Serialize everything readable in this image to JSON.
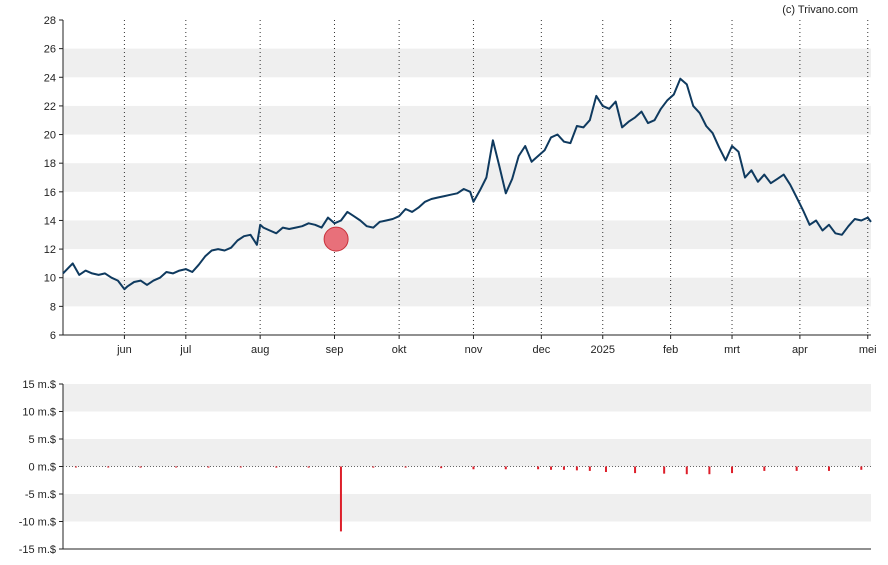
{
  "credit": "(c) Trivano.com",
  "colors": {
    "price_line": "#0f3a5f",
    "band": "#efefef",
    "axis": "#222222",
    "gridline": "#333333",
    "volume": "#dd1f2a",
    "marker": "#e8707a",
    "marker_stroke": "#c8303a"
  },
  "chart_data": [
    {
      "type": "line",
      "name": "price",
      "grid": true,
      "ylim": [
        6,
        28
      ],
      "yticks": [
        6,
        8,
        10,
        12,
        14,
        16,
        18,
        20,
        22,
        24,
        26,
        28
      ],
      "ytick_labels": [
        "6",
        "8",
        "10",
        "12",
        "14",
        "16",
        "18",
        "20",
        "22",
        "24",
        "26",
        "28"
      ],
      "xlim": [
        0,
        250
      ],
      "xticks": [
        {
          "label": "jun",
          "x": 19
        },
        {
          "label": "jul",
          "x": 38
        },
        {
          "label": "aug",
          "x": 61
        },
        {
          "label": "sep",
          "x": 84
        },
        {
          "label": "okt",
          "x": 104
        },
        {
          "label": "nov",
          "x": 127
        },
        {
          "label": "dec",
          "x": 148
        },
        {
          "label": "2025",
          "x": 167
        },
        {
          "label": "feb",
          "x": 188
        },
        {
          "label": "mrt",
          "x": 207
        },
        {
          "label": "apr",
          "x": 228
        },
        {
          "label": "mei",
          "x": 249
        }
      ],
      "x": [
        0,
        3,
        5,
        7,
        9,
        11,
        13,
        15,
        17,
        19,
        20,
        22,
        24,
        26,
        28,
        30,
        32,
        34,
        36,
        38,
        40,
        42,
        44,
        46,
        48,
        50,
        52,
        54,
        56,
        58,
        60,
        61,
        62,
        64,
        66,
        68,
        70,
        72,
        74,
        76,
        78,
        80,
        82,
        84,
        86,
        88,
        90,
        92,
        94,
        96,
        98,
        100,
        102,
        104,
        106,
        108,
        110,
        112,
        114,
        116,
        118,
        120,
        122,
        124,
        126,
        127,
        129,
        131,
        133,
        135,
        137,
        139,
        141,
        143,
        145,
        147,
        149,
        151,
        153,
        155,
        157,
        159,
        161,
        163,
        165,
        167,
        169,
        171,
        173,
        175,
        177,
        179,
        181,
        183,
        185,
        187,
        189,
        191,
        193,
        195,
        197,
        199,
        201,
        203,
        205,
        207,
        209,
        211,
        213,
        215,
        217,
        219,
        221,
        223,
        225,
        227,
        229,
        231,
        233,
        235,
        237,
        239,
        241,
        243,
        245,
        247,
        249,
        250
      ],
      "y": [
        10.3,
        11.0,
        10.2,
        10.5,
        10.3,
        10.2,
        10.3,
        10.0,
        9.8,
        9.2,
        9.4,
        9.7,
        9.8,
        9.5,
        9.8,
        10.0,
        10.4,
        10.3,
        10.5,
        10.6,
        10.4,
        10.9,
        11.5,
        11.9,
        12.0,
        11.9,
        12.1,
        12.6,
        12.9,
        13.0,
        12.3,
        13.7,
        13.5,
        13.3,
        13.1,
        13.5,
        13.4,
        13.5,
        13.6,
        13.8,
        13.7,
        13.5,
        14.2,
        13.8,
        14.0,
        14.6,
        14.3,
        14.0,
        13.6,
        13.5,
        13.9,
        14.0,
        14.1,
        14.3,
        14.8,
        14.6,
        14.9,
        15.3,
        15.5,
        15.6,
        15.7,
        15.8,
        15.9,
        16.2,
        16.0,
        15.3,
        16.1,
        17.0,
        19.6,
        17.8,
        15.9,
        16.9,
        18.5,
        19.2,
        18.1,
        18.5,
        18.9,
        19.8,
        20.0,
        19.5,
        19.4,
        20.6,
        20.5,
        21.0,
        22.7,
        22.0,
        21.8,
        22.3,
        20.5,
        20.9,
        21.2,
        21.6,
        20.8,
        21.0,
        21.8,
        22.4,
        22.8,
        23.9,
        23.5,
        22.0,
        21.5,
        20.6,
        20.1,
        19.1,
        18.2,
        19.2,
        18.8,
        17.0,
        17.5,
        16.7,
        17.2,
        16.6,
        16.9,
        17.2,
        16.5,
        15.6,
        14.7,
        13.7,
        14.0,
        13.3,
        13.7,
        13.1,
        13.0,
        13.6,
        14.1,
        14.0,
        14.2,
        13.9
      ]
    },
    {
      "type": "bar",
      "name": "volume",
      "grid": true,
      "ylim": [
        -15,
        15
      ],
      "yticks": [
        -15,
        -10,
        -5,
        0,
        5,
        10,
        15
      ],
      "ytick_labels": [
        "-15 m.$",
        "-10 m.$",
        "-5 m.$",
        "0 m.$",
        "5 m.$",
        "10 m.$",
        "15 m.$"
      ],
      "x": [
        4,
        14,
        24,
        35,
        45,
        55,
        66,
        76,
        86,
        96,
        106,
        117,
        127,
        137,
        147,
        151,
        155,
        159,
        163,
        168,
        177,
        186,
        193,
        200,
        207,
        217,
        227,
        237,
        247
      ],
      "values": [
        -0.15,
        -0.15,
        -0.2,
        -0.15,
        -0.2,
        -0.15,
        -0.2,
        -0.2,
        -11.8,
        -0.2,
        -0.2,
        -0.3,
        -0.5,
        -0.5,
        -0.5,
        -0.6,
        -0.6,
        -0.7,
        -0.8,
        -1.0,
        -1.2,
        -1.3,
        -1.4,
        -1.4,
        -1.2,
        -0.8,
        -0.8,
        -0.8,
        -0.6
      ]
    }
  ]
}
